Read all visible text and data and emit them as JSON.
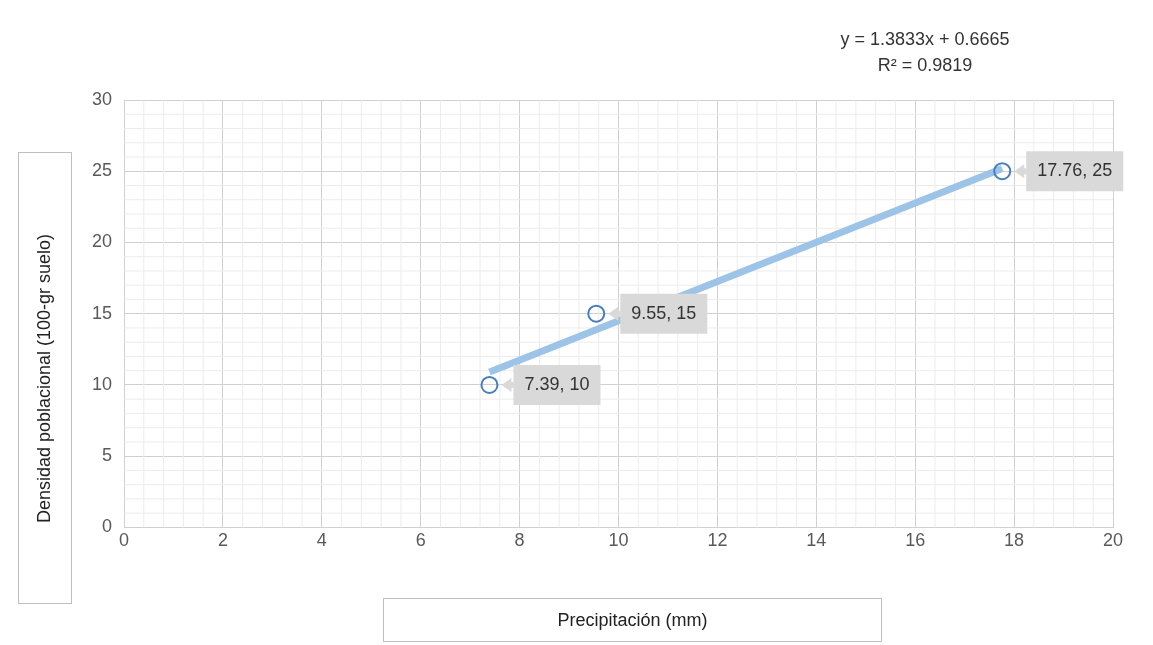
{
  "chart_data": {
    "type": "scatter",
    "xlabel": "Precipitación (mm)",
    "ylabel": "Densidad poblacional (100-gr suelo)",
    "annotations": [
      "y = 1.3833x + 0.6665",
      "R² = 0.9819"
    ],
    "xlim": [
      0,
      20
    ],
    "xticks": [
      0,
      2,
      4,
      6,
      8,
      10,
      12,
      14,
      16,
      18,
      20
    ],
    "ylim": [
      0,
      30
    ],
    "yticks": [
      0,
      5,
      10,
      15,
      20,
      25,
      30
    ],
    "grid": true,
    "legend": false,
    "marker": "circle",
    "series": [
      {
        "type": "scatter",
        "color": "#4a7ebb",
        "x": [
          7.39,
          9.55,
          17.76
        ],
        "values": [
          10,
          15,
          25
        ],
        "value_labels": [
          "7.39, 10",
          "9.55, 15",
          "17.76, 25"
        ]
      },
      {
        "type": "line",
        "color": "#9dc3e6",
        "x": [
          7.39,
          17.76
        ],
        "values": [
          10.9,
          25.2
        ],
        "line_style": "solid",
        "marker": "none"
      }
    ]
  }
}
